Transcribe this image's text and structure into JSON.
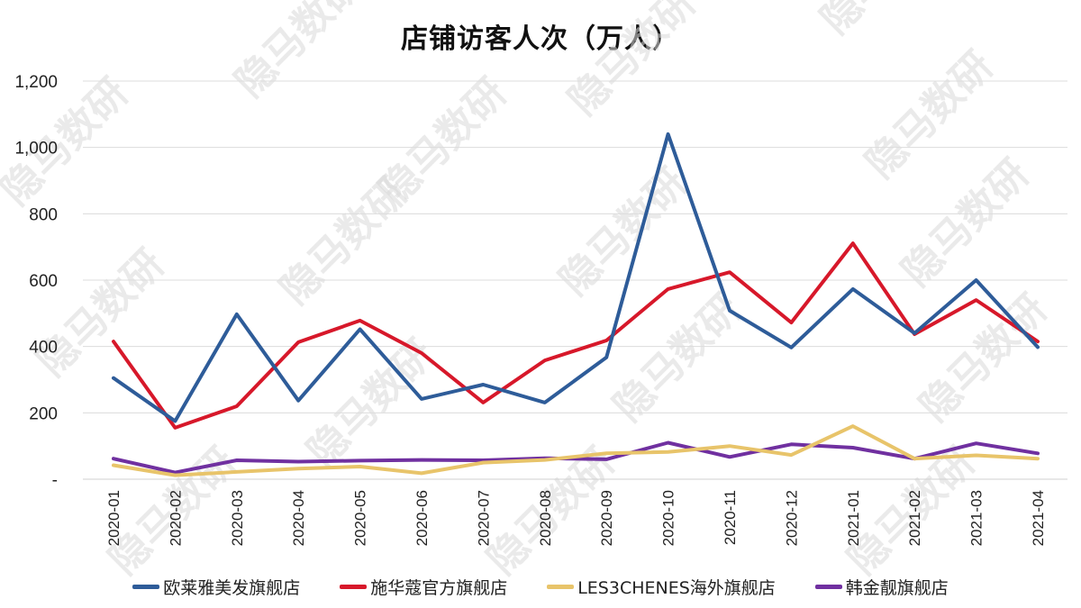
{
  "chart_data": {
    "type": "line",
    "title": "店铺访客人次（万人）",
    "xlabel": "",
    "ylabel": "",
    "ylim": [
      0,
      1200
    ],
    "yticks": [
      "-",
      "200",
      "400",
      "600",
      "800",
      "1,000",
      "1,200"
    ],
    "grid": true,
    "legend_position": "bottom",
    "categories": [
      "2020-01",
      "2020-02",
      "2020-03",
      "2020-04",
      "2020-05",
      "2020-06",
      "2020-07",
      "2020-08",
      "2020-09",
      "2020-10",
      "2020-11",
      "2020-12",
      "2021-01",
      "2021-02",
      "2021-03",
      "2021-04"
    ],
    "series": [
      {
        "name": "欧莱雅美发旗舰店",
        "color": "#2E5C99",
        "values": [
          305,
          175,
          497,
          237,
          452,
          242,
          285,
          231,
          367,
          1040,
          508,
          397,
          573,
          440,
          600,
          398
        ]
      },
      {
        "name": "施华蔻官方旗舰店",
        "color": "#D7182A",
        "values": [
          415,
          155,
          220,
          413,
          478,
          380,
          231,
          358,
          418,
          573,
          624,
          472,
          711,
          437,
          540,
          415
        ]
      },
      {
        "name": "LES3CHENES海外旗舰店",
        "color": "#E8C46A",
        "values": [
          42,
          12,
          22,
          32,
          38,
          18,
          50,
          58,
          78,
          82,
          100,
          73,
          160,
          62,
          72,
          62
        ]
      },
      {
        "name": "韩金靓旗舰店",
        "color": "#7030A0",
        "values": [
          62,
          20,
          57,
          53,
          56,
          58,
          57,
          63,
          60,
          110,
          67,
          105,
          95,
          62,
          108,
          78
        ]
      }
    ]
  },
  "watermark": "隐马数研"
}
